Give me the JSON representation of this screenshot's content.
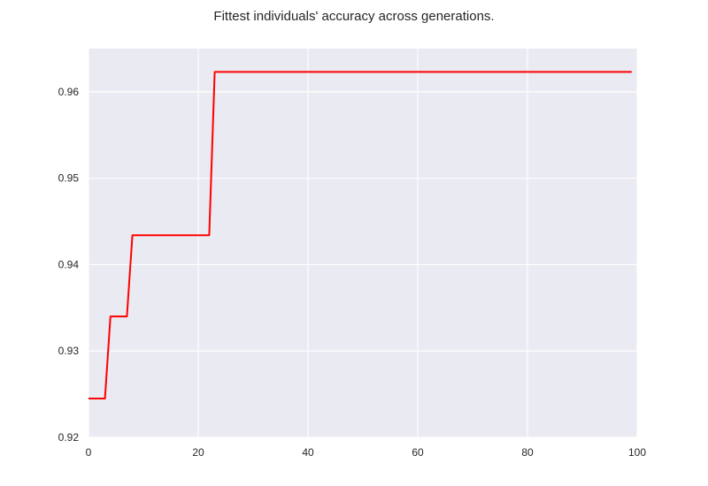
{
  "chart_data": {
    "type": "line",
    "title": "Fittest individuals' accuracy across generations.",
    "xlabel": "",
    "ylabel": "",
    "xlim": [
      0,
      100
    ],
    "ylim": [
      0.92,
      0.965
    ],
    "xticks": [
      0,
      20,
      40,
      60,
      80,
      100
    ],
    "xtick_labels": [
      "0",
      "20",
      "40",
      "60",
      "80",
      "100"
    ],
    "yticks": [
      0.92,
      0.93,
      0.94,
      0.95,
      0.96
    ],
    "ytick_labels": [
      "0.92",
      "0.93",
      "0.94",
      "0.95",
      "0.96"
    ],
    "grid": true,
    "background_color": "#eaeaf2",
    "grid_color": "#ffffff",
    "series": [
      {
        "color": "#ff0000",
        "x": [
          0,
          3,
          4,
          7,
          8,
          22,
          23,
          99
        ],
        "y": [
          0.9245,
          0.9245,
          0.934,
          0.934,
          0.9434,
          0.9434,
          0.9623,
          0.9623
        ]
      }
    ]
  }
}
